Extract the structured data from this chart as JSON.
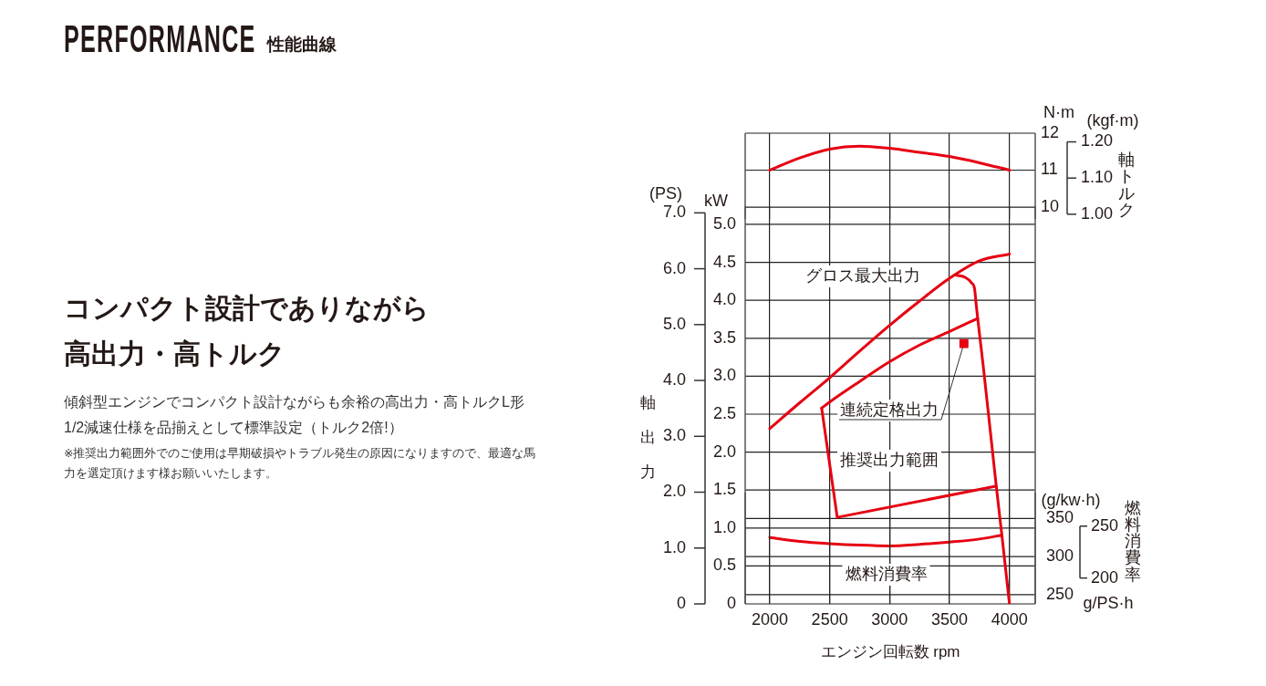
{
  "chart_data": [
    {
      "type": "other",
      "title": "PERFORMANCE",
      "subtitle": "性能曲線",
      "annotations": [
        "コンパクト設計でありながら高出力・高トルク",
        "傾斜型エンジンでコンパクト設計ながらも余裕の高出力・高トルクL形1/2減速仕様を品揃えとして標準設定（トルク2倍!）",
        "※推奨出力範囲外でのご使用は早期破損やトラブル発生の原因になりますので、最適な馬力を選定頂けます様お願いいたします。"
      ]
    },
    {
      "type": "line",
      "ylabel": "N·m",
      "y2label": "(kgf·m)",
      "xlim": [
        1795,
        4215
      ],
      "xticks": [
        2000,
        2500,
        3000,
        3500,
        4000
      ],
      "ylim": [
        9.68,
        12
      ],
      "yticks": [
        10,
        11,
        12
      ],
      "y2lim": [
        0.987,
        1.224
      ],
      "y2ticks": [
        {
          "value": 1,
          "label": "1.00"
        },
        {
          "value": 1.1,
          "label": "1.10"
        },
        {
          "value": 1.2,
          "label": "1.20"
        }
      ],
      "grid": true,
      "tick_labels": "y",
      "series": [
        {
          "color": "#e60012",
          "x": [
            2000,
            2250,
            2500,
            2750,
            3000,
            3250,
            3500,
            3750,
            4000
          ],
          "values": [
            11.0,
            11.33,
            11.57,
            11.65,
            11.59,
            11.48,
            11.37,
            11.2,
            11.0
          ]
        }
      ],
      "annotations": [
        "軸トルク"
      ]
    },
    {
      "type": "line",
      "xlabel": "エンジン回転数 rpm",
      "ylabel": "kW",
      "y2label": "(PS)",
      "xlim": [
        1795,
        4215
      ],
      "xticks": [
        2000,
        2500,
        3000,
        3500,
        4000
      ],
      "ylim": [
        0,
        5.24
      ],
      "yticks": [
        0,
        0.5,
        {
          "value": 1,
          "label": "1.0"
        },
        1.5,
        {
          "value": 2,
          "label": "2.0"
        },
        2.5,
        {
          "value": 3,
          "label": "3.0"
        },
        3.5,
        {
          "value": 4,
          "label": "4.0"
        },
        4.5,
        {
          "value": 5,
          "label": "5.0"
        }
      ],
      "y2lim": [
        0,
        7.12
      ],
      "y2ticks": [
        0,
        {
          "value": 1,
          "label": "1.0"
        },
        {
          "value": 2,
          "label": "2.0"
        },
        {
          "value": 3,
          "label": "3.0"
        },
        {
          "value": 4,
          "label": "4.0"
        },
        {
          "value": 5,
          "label": "5.0"
        },
        {
          "value": 6,
          "label": "6.0"
        },
        {
          "value": 7,
          "label": "7.0"
        }
      ],
      "grid": true,
      "series": [
        {
          "color": "#e60012",
          "x": [
            2000,
            2250,
            2500,
            2750,
            3000,
            3250,
            3500,
            3750,
            4000
          ],
          "values": [
            2.31,
            2.65,
            2.98,
            3.33,
            3.67,
            3.99,
            4.29,
            4.52,
            4.61
          ]
        },
        {
          "color": "#e60012",
          "x": [
            3557,
            3633,
            3684,
            3709,
            3722,
            3735,
            3780,
            3890,
            3937,
            4000
          ],
          "values": [
            4.33,
            4.3,
            4.23,
            4.15,
            3.95,
            3.76,
            3.15,
            1.55,
            0.9,
            0
          ]
        },
        {
          "color": "#e60012",
          "x": [
            2433,
            2500,
            2750,
            3000,
            3250,
            3500,
            3735
          ],
          "values": [
            2.58,
            2.66,
            2.93,
            3.19,
            3.41,
            3.59,
            3.76
          ]
        },
        {
          "color": "#e60012",
          "x": [
            2433,
            2563,
            3885
          ],
          "values": [
            2.58,
            1.14,
            1.55
          ]
        },
        {
          "type": "scatter",
          "marker": "square",
          "color": "#e60012",
          "x": [
            3620
          ],
          "values": [
            3.43
          ]
        }
      ],
      "annotations": [
        "軸出力",
        "グロス最大出力",
        "連続定格出力",
        "推奨出力範囲",
        "燃料消費率"
      ]
    },
    {
      "type": "line",
      "ylabel": "(g/kw·h)",
      "y2label": "g/PS·h",
      "xlim": [
        1795,
        4215
      ],
      "xticks": [
        2000,
        2500,
        3000,
        3500,
        4000
      ],
      "ylim": [
        238,
        383.8
      ],
      "yticks": [
        250,
        300,
        350
      ],
      "y2lim": [
        175.1,
        282.3
      ],
      "y2ticks": [
        200,
        250
      ],
      "grid": true,
      "tick_labels": "y",
      "series": [
        {
          "color": "#e60012",
          "x": [
            2000,
            2250,
            2500,
            2750,
            3000,
            3250,
            3500,
            3750,
            3937
          ],
          "values": [
            325,
            320,
            317,
            315,
            314,
            316,
            319,
            323,
            328
          ]
        }
      ],
      "annotations": [
        "燃料消費率"
      ]
    }
  ]
}
